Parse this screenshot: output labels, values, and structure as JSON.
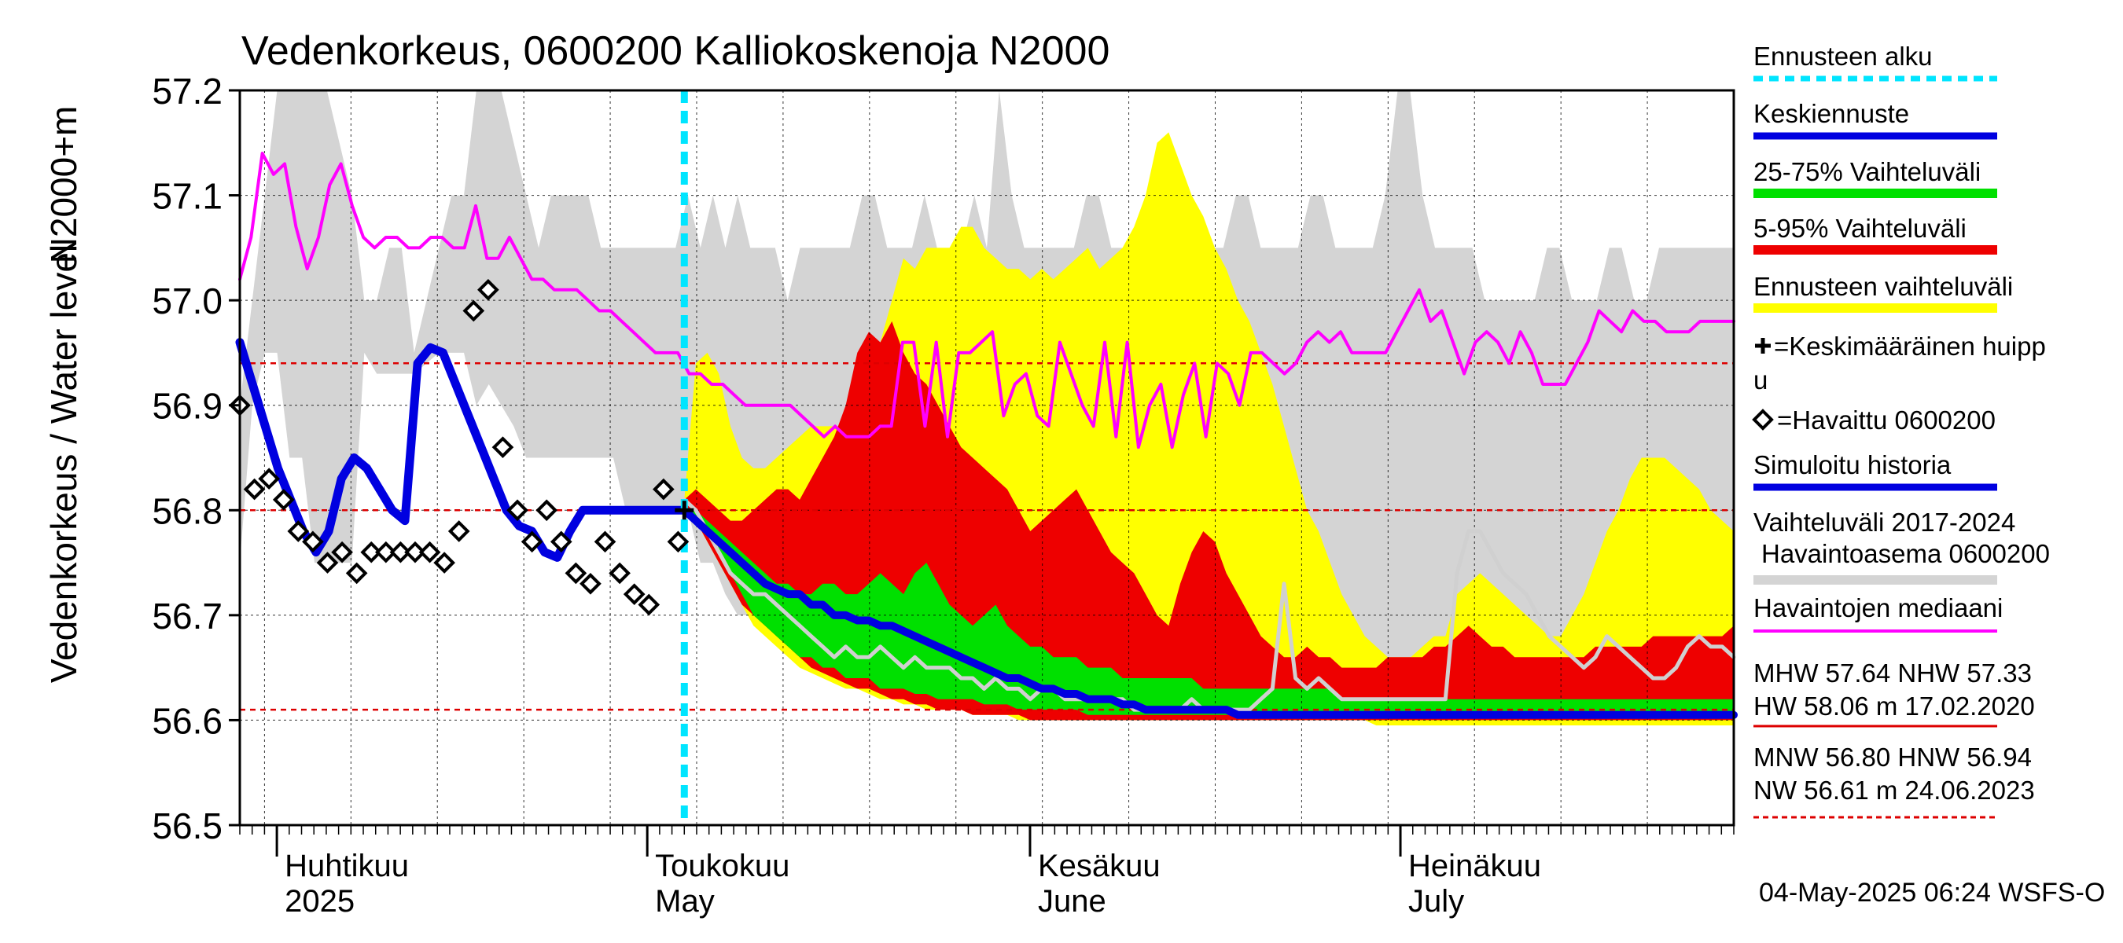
{
  "chart_data": {
    "type": "area",
    "title": "Vedenkorkeus, 0600200 Kalliokoskenoja N2000",
    "ylabel_left": "Vedenkorkeus / Water level",
    "ylabel_top": "N2000+m",
    "ylim": [
      56.5,
      57.2
    ],
    "yticks": [
      "56.5",
      "56.6",
      "56.7",
      "56.8",
      "56.9",
      "57.0",
      "57.1",
      "57.2"
    ],
    "xlim": [
      "2025-03-29",
      "2025-07-28"
    ],
    "month_labels": [
      {
        "fi": "Huhtikuu",
        "en": "2025",
        "date": "2025-04-01"
      },
      {
        "fi": "Toukokuu",
        "en": "May",
        "date": "2025-05-01"
      },
      {
        "fi": "Kesäkuu",
        "en": "June",
        "date": "2025-06-01"
      },
      {
        "fi": "Heinäkuu",
        "en": "July",
        "date": "2025-07-01"
      }
    ],
    "forecast_start": "2025-05-04",
    "reference_lines": [
      56.94,
      56.8,
      56.61
    ],
    "series": {
      "hist_range_upper": [
        56.9,
        57.0,
        57.1,
        57.2,
        57.2,
        57.2,
        57.2,
        57.2,
        57.15,
        57.1,
        57.0,
        57.0,
        57.05,
        57.05,
        56.95,
        57.0,
        57.05,
        57.1,
        57.1,
        57.2,
        57.2,
        57.2,
        57.15,
        57.1,
        57.05,
        57.1,
        57.1,
        57.1,
        57.1,
        57.05,
        57.05,
        57.05,
        57.05,
        57.05,
        57.05,
        57.05,
        57.1,
        57.05,
        57.1,
        57.05,
        57.1,
        57.05,
        57.05,
        57.05,
        57.0,
        57.05,
        57.05,
        57.05,
        57.05,
        57.05,
        57.1,
        57.1,
        57.05,
        57.05,
        57.05,
        57.1,
        57.05,
        57.05,
        57.05,
        57.1,
        57.05,
        57.2,
        57.1,
        57.05,
        57.05,
        57.05,
        57.05,
        57.05,
        57.1,
        57.1,
        57.05,
        57.05,
        57.05,
        57.05,
        57.05,
        57.05,
        57.05,
        57.05,
        57.05,
        57.05,
        57.1,
        57.1,
        57.05,
        57.05,
        57.05,
        57.05,
        57.1,
        57.1,
        57.05,
        57.05,
        57.05,
        57.05,
        57.1,
        57.2,
        57.2,
        57.1,
        57.05,
        57.05,
        57.05,
        57.05,
        57.0,
        57.0,
        57.0,
        57.0,
        57.0,
        57.05,
        57.05,
        57.0,
        57.0,
        57.0,
        57.05,
        57.05,
        57.0,
        57.0,
        57.05,
        57.05,
        57.05,
        57.05,
        57.05,
        57.05,
        57.05
      ],
      "hist_range_lower": [
        56.75,
        56.9,
        56.95,
        56.95,
        56.85,
        56.85,
        56.75,
        56.75,
        56.75,
        56.75,
        56.95,
        56.93,
        56.93,
        56.93,
        56.93,
        56.94,
        56.95,
        56.95,
        56.95,
        56.9,
        56.92,
        56.9,
        56.88,
        56.85,
        56.85,
        56.85,
        56.85,
        56.85,
        56.85,
        56.85,
        56.85,
        56.8,
        56.8,
        56.8,
        56.8,
        56.8,
        56.8,
        56.75,
        56.75,
        56.72,
        56.7,
        56.7,
        56.7,
        56.68,
        56.68,
        56.68,
        56.68,
        56.67,
        56.67,
        56.67,
        56.67,
        56.66,
        56.66,
        56.66,
        56.66,
        56.66,
        56.65,
        56.65,
        56.65,
        56.65,
        56.65,
        56.64,
        56.64,
        56.64,
        56.64,
        56.64,
        56.64,
        56.64,
        56.64,
        56.63,
        56.63,
        56.63,
        56.63,
        56.63,
        56.63,
        56.63,
        56.63,
        56.62,
        56.62,
        56.62,
        56.62,
        56.62,
        56.62,
        56.62,
        56.62,
        56.62,
        56.62,
        56.62,
        56.62,
        56.62,
        56.62,
        56.62,
        56.62,
        56.62,
        56.62,
        56.62,
        56.62,
        56.62,
        56.62,
        56.62,
        56.62,
        56.62,
        56.62,
        56.62,
        56.62,
        56.62,
        56.62,
        56.62,
        56.62,
        56.62,
        56.62,
        56.62,
        56.62,
        56.62,
        56.62,
        56.62,
        56.62,
        56.62,
        56.62,
        56.62,
        56.62
      ],
      "forecast_range_upper": [
        56.81,
        56.94,
        56.95,
        56.93,
        56.88,
        56.85,
        56.84,
        56.84,
        56.85,
        56.86,
        56.87,
        56.88,
        56.88,
        56.88,
        56.88,
        56.9,
        56.92,
        56.96,
        57.0,
        57.04,
        57.03,
        57.05,
        57.05,
        57.05,
        57.07,
        57.07,
        57.05,
        57.04,
        57.03,
        57.03,
        57.02,
        57.03,
        57.02,
        57.03,
        57.04,
        57.05,
        57.03,
        57.04,
        57.05,
        57.07,
        57.1,
        57.15,
        57.16,
        57.13,
        57.1,
        57.08,
        57.05,
        57.03,
        57.0,
        56.98,
        56.95,
        56.92,
        56.88,
        56.84,
        56.8,
        56.78,
        56.75,
        56.72,
        56.7,
        56.68,
        56.67,
        56.66,
        56.66,
        56.66,
        56.67,
        56.68,
        56.68,
        56.72,
        56.73,
        56.74,
        56.73,
        56.72,
        56.71,
        56.7,
        56.69,
        56.68,
        56.68,
        56.7,
        56.72,
        56.75,
        56.78,
        56.8,
        56.83,
        56.85,
        56.85,
        56.85,
        56.84,
        56.83,
        56.82,
        56.8,
        56.79,
        56.78
      ],
      "forecast_range_lower": [
        56.8,
        56.79,
        56.77,
        56.75,
        56.73,
        56.71,
        56.69,
        56.68,
        56.67,
        56.66,
        56.65,
        56.645,
        56.64,
        56.635,
        56.63,
        56.63,
        56.625,
        56.62,
        56.62,
        56.615,
        56.615,
        56.61,
        56.61,
        56.61,
        56.61,
        56.605,
        56.605,
        56.605,
        56.605,
        56.6,
        56.6,
        56.6,
        56.6,
        56.6,
        56.6,
        56.6,
        56.6,
        56.6,
        56.6,
        56.6,
        56.6,
        56.6,
        56.6,
        56.6,
        56.6,
        56.6,
        56.6,
        56.6,
        56.6,
        56.6,
        56.6,
        56.6,
        56.6,
        56.6,
        56.6,
        56.6,
        56.6,
        56.6,
        56.6,
        56.6,
        56.595,
        56.595,
        56.595,
        56.595,
        56.595,
        56.595,
        56.595,
        56.595,
        56.595,
        56.595,
        56.595,
        56.595,
        56.595,
        56.595,
        56.595,
        56.595,
        56.595,
        56.595,
        56.595,
        56.595,
        56.595,
        56.595,
        56.595,
        56.595,
        56.595,
        56.595,
        56.595,
        56.595,
        56.595,
        56.595,
        56.595,
        56.595
      ],
      "p95": [
        56.81,
        56.82,
        56.81,
        56.8,
        56.79,
        56.79,
        56.8,
        56.81,
        56.82,
        56.82,
        56.81,
        56.83,
        56.85,
        56.87,
        56.9,
        56.95,
        56.97,
        56.96,
        56.98,
        56.95,
        56.93,
        56.92,
        56.9,
        56.88,
        56.86,
        56.85,
        56.84,
        56.83,
        56.82,
        56.8,
        56.78,
        56.79,
        56.8,
        56.81,
        56.82,
        56.8,
        56.78,
        56.76,
        56.75,
        56.74,
        56.72,
        56.7,
        56.69,
        56.73,
        56.76,
        56.78,
        56.77,
        56.74,
        56.72,
        56.7,
        56.68,
        56.67,
        56.66,
        56.66,
        56.67,
        56.66,
        56.66,
        56.65,
        56.65,
        56.65,
        56.65,
        56.66,
        56.66,
        56.66,
        56.66,
        56.67,
        56.67,
        56.68,
        56.69,
        56.68,
        56.67,
        56.67,
        56.66,
        56.66,
        56.66,
        56.66,
        56.66,
        56.66,
        56.66,
        56.67,
        56.67,
        56.67,
        56.67,
        56.67,
        56.68,
        56.68,
        56.68,
        56.68,
        56.68,
        56.68,
        56.68,
        56.69
      ],
      "p5": [
        56.8,
        56.79,
        56.77,
        56.75,
        56.73,
        56.71,
        56.7,
        56.69,
        56.68,
        56.67,
        56.66,
        56.65,
        56.645,
        56.64,
        56.635,
        56.63,
        56.63,
        56.625,
        56.62,
        56.62,
        56.615,
        56.615,
        56.61,
        56.61,
        56.61,
        56.605,
        56.605,
        56.605,
        56.605,
        56.605,
        56.6,
        56.6,
        56.6,
        56.6,
        56.6,
        56.6,
        56.6,
        56.6,
        56.6,
        56.6,
        56.6,
        56.6,
        56.6,
        56.6,
        56.6,
        56.6,
        56.6,
        56.6,
        56.6,
        56.6,
        56.6,
        56.6,
        56.6,
        56.6,
        56.6,
        56.6,
        56.6,
        56.6,
        56.6,
        56.6,
        56.6,
        56.6,
        56.6,
        56.6,
        56.6,
        56.6,
        56.6,
        56.6,
        56.6,
        56.6,
        56.6,
        56.6,
        56.6,
        56.6,
        56.6,
        56.6,
        56.6,
        56.6,
        56.6,
        56.6,
        56.6,
        56.6,
        56.6,
        56.6,
        56.6,
        56.6,
        56.6,
        56.6,
        56.6,
        56.6,
        56.6,
        56.6
      ],
      "p75": [
        56.8,
        56.8,
        56.79,
        56.78,
        56.77,
        56.76,
        56.75,
        56.74,
        56.73,
        56.73,
        56.72,
        56.72,
        56.73,
        56.73,
        56.72,
        56.72,
        56.73,
        56.74,
        56.73,
        56.72,
        56.74,
        56.75,
        56.73,
        56.71,
        56.7,
        56.69,
        56.7,
        56.71,
        56.69,
        56.68,
        56.67,
        56.67,
        56.66,
        56.66,
        56.66,
        56.65,
        56.65,
        56.65,
        56.64,
        56.64,
        56.64,
        56.64,
        56.64,
        56.64,
        56.64,
        56.63,
        56.63,
        56.63,
        56.63,
        56.63,
        56.63,
        56.63,
        56.63,
        56.63,
        56.63,
        56.63,
        56.63,
        56.62,
        56.62,
        56.62,
        56.62,
        56.62,
        56.62,
        56.62,
        56.62,
        56.62,
        56.62,
        56.62,
        56.62,
        56.62,
        56.62,
        56.62,
        56.62,
        56.62,
        56.62,
        56.62,
        56.62,
        56.62,
        56.62,
        56.62,
        56.62,
        56.62,
        56.62,
        56.62,
        56.62,
        56.62,
        56.62,
        56.62,
        56.62,
        56.62,
        56.62,
        56.62
      ],
      "p25": [
        56.8,
        56.79,
        56.78,
        56.76,
        56.74,
        56.72,
        56.7,
        56.69,
        56.68,
        56.67,
        56.66,
        56.66,
        56.65,
        56.65,
        56.64,
        56.64,
        56.64,
        56.63,
        56.63,
        56.63,
        56.625,
        56.625,
        56.62,
        56.62,
        56.62,
        56.62,
        56.615,
        56.615,
        56.615,
        56.61,
        56.61,
        56.61,
        56.61,
        56.61,
        56.61,
        56.605,
        56.605,
        56.605,
        56.605,
        56.605,
        56.605,
        56.605,
        56.605,
        56.605,
        56.605,
        56.605,
        56.605,
        56.605,
        56.605,
        56.605,
        56.605,
        56.605,
        56.605,
        56.605,
        56.605,
        56.605,
        56.605,
        56.605,
        56.605,
        56.605,
        56.605,
        56.605,
        56.605,
        56.605,
        56.605,
        56.605,
        56.605,
        56.605,
        56.605,
        56.605,
        56.605,
        56.605,
        56.605,
        56.605,
        56.605,
        56.605,
        56.605,
        56.605,
        56.605,
        56.605,
        56.605,
        56.605,
        56.605,
        56.605,
        56.605,
        56.605,
        56.605,
        56.605,
        56.605,
        56.605,
        56.605,
        56.605
      ],
      "mean_forecast": [
        56.8,
        56.79,
        56.78,
        56.77,
        56.76,
        56.75,
        56.74,
        56.73,
        56.725,
        56.72,
        56.72,
        56.71,
        56.71,
        56.7,
        56.7,
        56.695,
        56.695,
        56.69,
        56.69,
        56.685,
        56.68,
        56.675,
        56.67,
        56.665,
        56.66,
        56.655,
        56.65,
        56.645,
        56.64,
        56.64,
        56.635,
        56.63,
        56.63,
        56.625,
        56.625,
        56.62,
        56.62,
        56.62,
        56.615,
        56.615,
        56.61,
        56.61,
        56.61,
        56.61,
        56.61,
        56.61,
        56.61,
        56.61,
        56.605,
        56.605,
        56.605,
        56.605,
        56.605,
        56.605,
        56.605,
        56.605,
        56.605,
        56.605,
        56.605,
        56.605,
        56.605,
        56.605,
        56.605,
        56.605,
        56.605,
        56.605,
        56.605,
        56.605,
        56.605,
        56.605,
        56.605,
        56.605,
        56.605,
        56.605,
        56.605,
        56.605,
        56.605,
        56.605,
        56.605,
        56.605,
        56.605,
        56.605,
        56.605,
        56.605,
        56.605,
        56.605,
        56.605,
        56.605,
        56.605,
        56.605,
        56.605,
        56.605
      ],
      "simulated_history": [
        56.96,
        56.92,
        56.88,
        56.84,
        56.81,
        56.78,
        56.76,
        56.78,
        56.83,
        56.85,
        56.84,
        56.82,
        56.8,
        56.79,
        56.94,
        56.955,
        56.95,
        56.92,
        56.89,
        56.86,
        56.83,
        56.8,
        56.785,
        56.78,
        56.76,
        56.755,
        56.78,
        56.8,
        56.8,
        56.8,
        56.8,
        56.8,
        56.8,
        56.8,
        56.8,
        56.8
      ],
      "median": [
        57.02,
        57.06,
        57.14,
        57.12,
        57.13,
        57.07,
        57.03,
        57.06,
        57.11,
        57.13,
        57.09,
        57.06,
        57.05,
        57.06,
        57.06,
        57.05,
        57.05,
        57.06,
        57.06,
        57.05,
        57.05,
        57.09,
        57.04,
        57.04,
        57.06,
        57.04,
        57.02,
        57.02,
        57.01,
        57.01,
        57.01,
        57.0,
        56.99,
        56.99,
        56.98,
        56.97,
        56.96,
        56.95,
        56.95,
        56.95,
        56.93,
        56.93,
        56.92,
        56.92,
        56.91,
        56.9,
        56.9,
        56.9,
        56.9,
        56.9,
        56.89,
        56.88,
        56.87,
        56.88,
        56.87,
        56.87,
        56.87,
        56.88,
        56.88,
        56.96,
        56.96,
        56.88,
        56.96,
        56.87,
        56.95,
        56.95,
        56.96,
        56.97,
        56.89,
        56.92,
        56.93,
        56.89,
        56.88,
        56.96,
        56.93,
        56.9,
        56.88,
        56.96,
        56.87,
        56.96,
        56.86,
        56.9,
        56.92,
        56.86,
        56.91,
        56.94,
        56.87,
        56.94,
        56.93,
        56.9,
        56.95,
        56.95,
        56.94,
        56.93,
        56.94,
        56.96,
        56.97,
        56.96,
        56.97,
        56.95,
        56.95,
        56.95,
        56.95,
        56.97,
        56.99,
        57.01,
        56.98,
        56.99,
        56.96,
        56.93,
        56.96,
        56.97,
        56.96,
        56.94,
        56.97,
        56.95,
        56.92,
        56.92,
        56.92,
        56.94,
        56.96,
        56.99,
        56.98,
        56.97,
        56.99,
        56.98,
        56.98,
        56.97,
        56.97,
        56.97,
        56.98,
        56.98,
        56.98,
        56.98
      ],
      "observed_hist_line": [
        56.81,
        56.8,
        56.78,
        56.76,
        56.74,
        56.73,
        56.72,
        56.72,
        56.71,
        56.7,
        56.69,
        56.68,
        56.67,
        56.66,
        56.67,
        56.66,
        56.66,
        56.67,
        56.66,
        56.65,
        56.66,
        56.65,
        56.65,
        56.65,
        56.64,
        56.64,
        56.63,
        56.64,
        56.63,
        56.63,
        56.62,
        56.63,
        56.63,
        56.62,
        56.62,
        56.62,
        56.62,
        56.62,
        56.62,
        56.61,
        56.61,
        56.61,
        56.61,
        56.61,
        56.62,
        56.61,
        56.61,
        56.61,
        56.61,
        56.61,
        56.62,
        56.63,
        56.73,
        56.64,
        56.63,
        56.64,
        56.63,
        56.62,
        56.62,
        56.62,
        56.62,
        56.62,
        56.62,
        56.62,
        56.62,
        56.62,
        56.62,
        56.74,
        56.78,
        56.78,
        56.76,
        56.74,
        56.73,
        56.72,
        56.7,
        56.68,
        56.67,
        56.66,
        56.65,
        56.66,
        56.68,
        56.67,
        56.66,
        56.65,
        56.64,
        56.64,
        56.65,
        56.67,
        56.68,
        56.67,
        56.67,
        56.66
      ],
      "observed_diamonds": [
        56.9,
        56.82,
        56.83,
        56.81,
        56.78,
        56.77,
        56.75,
        56.76,
        56.74,
        56.76,
        56.76,
        56.76,
        56.76,
        56.76,
        56.75,
        56.78,
        56.99,
        57.01,
        56.86,
        56.8,
        56.77,
        56.8,
        56.77,
        56.74,
        56.73,
        56.77,
        56.74,
        56.72,
        56.71,
        56.82,
        56.77
      ],
      "mean_peak": 56.8
    },
    "legend": [
      "Ennusteen alku",
      "Keskiennuste",
      "25-75% Vaihteluväli",
      "5-95% Vaihteluväli",
      "Ennusteen vaihteluväli",
      "✚=Keskimääräinen huippu",
      "◇=Havaittu 0600200",
      "Simuloitu historia",
      "Vaihteluväli 2017-2024 Havaintoasema 0600200",
      "Havaintojen mediaani"
    ],
    "stats": {
      "line1": "MHW  57.64 NHW  57.33",
      "line2": "HW  58.06 m 17.02.2020",
      "line3": "MNW  56.80 HNW  56.94",
      "line4": "NW  56.61 m 24.06.2023"
    },
    "footer": "04-May-2025 06:24 WSFS-O",
    "colors": {
      "forecast_start": "#00e5ff",
      "mean_forecast": "#0000e0",
      "p25_75": "#00e000",
      "p5_95": "#ee0000",
      "forecast_range": "#ffff00",
      "history_range": "#d4d4d4",
      "median": "#ff00ff",
      "observed_line": "#d0d0d0",
      "reference": "#dd0000"
    }
  }
}
